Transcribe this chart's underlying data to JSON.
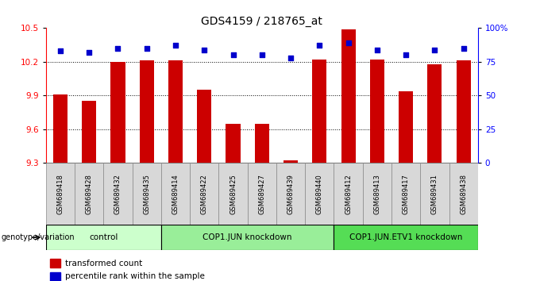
{
  "title": "GDS4159 / 218765_at",
  "samples": [
    "GSM689418",
    "GSM689428",
    "GSM689432",
    "GSM689435",
    "GSM689414",
    "GSM689422",
    "GSM689425",
    "GSM689427",
    "GSM689439",
    "GSM689440",
    "GSM689412",
    "GSM689413",
    "GSM689417",
    "GSM689431",
    "GSM689438"
  ],
  "bar_values": [
    9.91,
    9.85,
    10.2,
    10.21,
    10.21,
    9.95,
    9.65,
    9.65,
    9.32,
    10.22,
    10.49,
    10.22,
    9.94,
    10.18,
    10.21
  ],
  "dot_values": [
    83,
    82,
    85,
    85,
    87,
    84,
    80,
    80,
    78,
    87,
    89,
    84,
    80,
    84,
    85
  ],
  "groups": [
    {
      "label": "control",
      "start": 0,
      "end": 4,
      "color": "#ccffcc"
    },
    {
      "label": "COP1.JUN knockdown",
      "start": 4,
      "end": 10,
      "color": "#99ee99"
    },
    {
      "label": "COP1.JUN.ETV1 knockdown",
      "start": 10,
      "end": 15,
      "color": "#55dd55"
    }
  ],
  "ylim": [
    9.3,
    10.5
  ],
  "yticks": [
    9.3,
    9.6,
    9.9,
    10.2,
    10.5
  ],
  "right_yticks": [
    0,
    25,
    50,
    75,
    100
  ],
  "bar_color": "#cc0000",
  "dot_color": "#0000cc",
  "bar_bottom": 9.3,
  "legend_label_bar": "transformed count",
  "legend_label_dot": "percentile rank within the sample",
  "xlabel_label": "genotype/variation",
  "title_fontsize": 10,
  "tick_fontsize": 7.5,
  "sample_fontsize": 6,
  "group_fontsize": 7.5
}
